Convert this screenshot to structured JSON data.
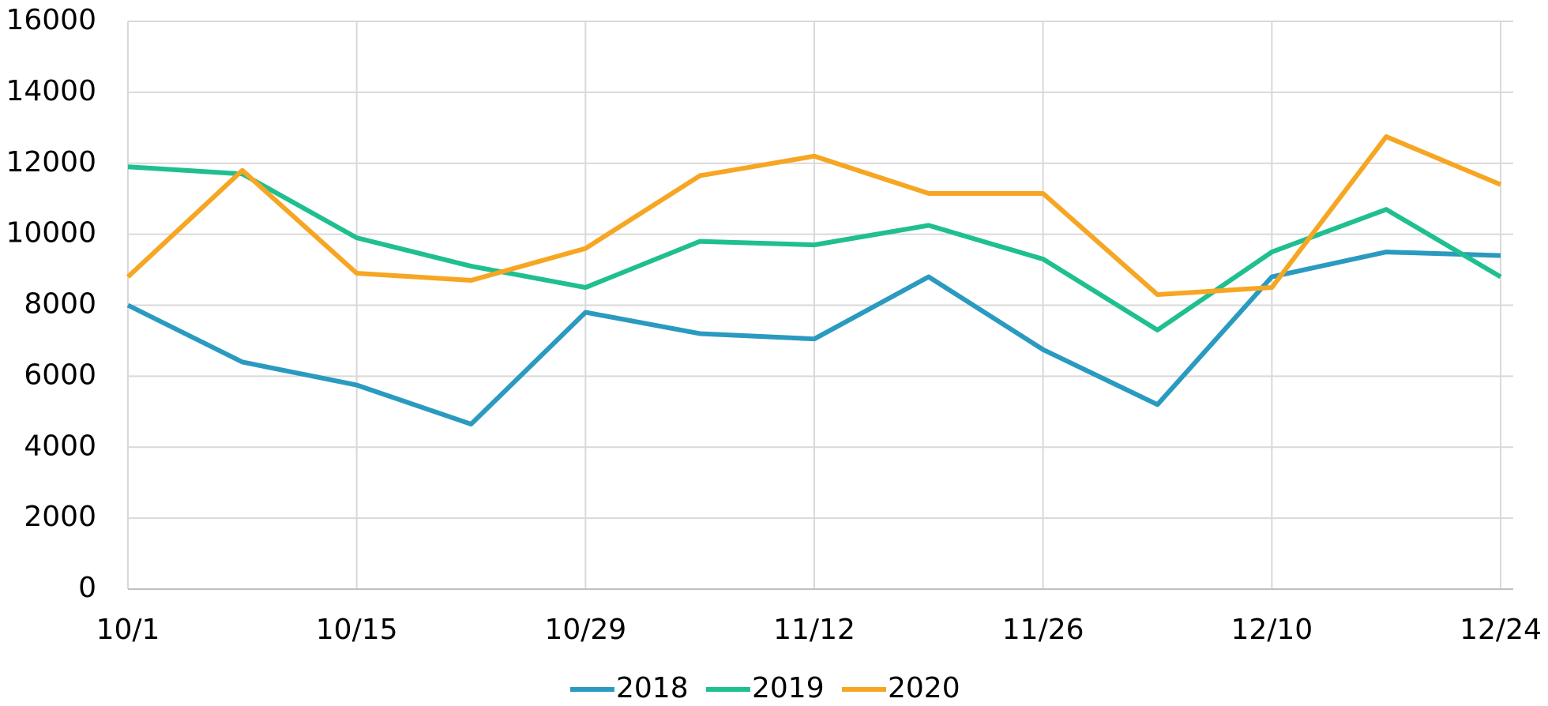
{
  "chart_data": {
    "type": "line",
    "categories": [
      "10/1",
      null,
      "10/15",
      null,
      "10/29",
      null,
      "11/12",
      null,
      "11/26",
      null,
      "12/10",
      null,
      "12/24"
    ],
    "series": [
      {
        "name": "2018",
        "color": "#2a9ac0",
        "values": [
          8000,
          6400,
          5750,
          4650,
          7800,
          7200,
          7050,
          8800,
          6750,
          5200,
          8800,
          9500,
          9400
        ]
      },
      {
        "name": "2019",
        "color": "#1fbf8f",
        "values": [
          11900,
          11700,
          9900,
          9100,
          8500,
          9800,
          9700,
          10250,
          9300,
          7300,
          9500,
          10700,
          8800
        ]
      },
      {
        "name": "2020",
        "color": "#f6a623",
        "values": [
          8800,
          11800,
          8900,
          8700,
          9600,
          11650,
          12200,
          11150,
          11150,
          8300,
          8500,
          12750,
          11400
        ]
      }
    ],
    "ylim": [
      0,
      16000
    ],
    "yticks": [
      0,
      2000,
      4000,
      6000,
      8000,
      10000,
      12000,
      14000,
      16000
    ],
    "grid": true,
    "legend": "bottom"
  }
}
